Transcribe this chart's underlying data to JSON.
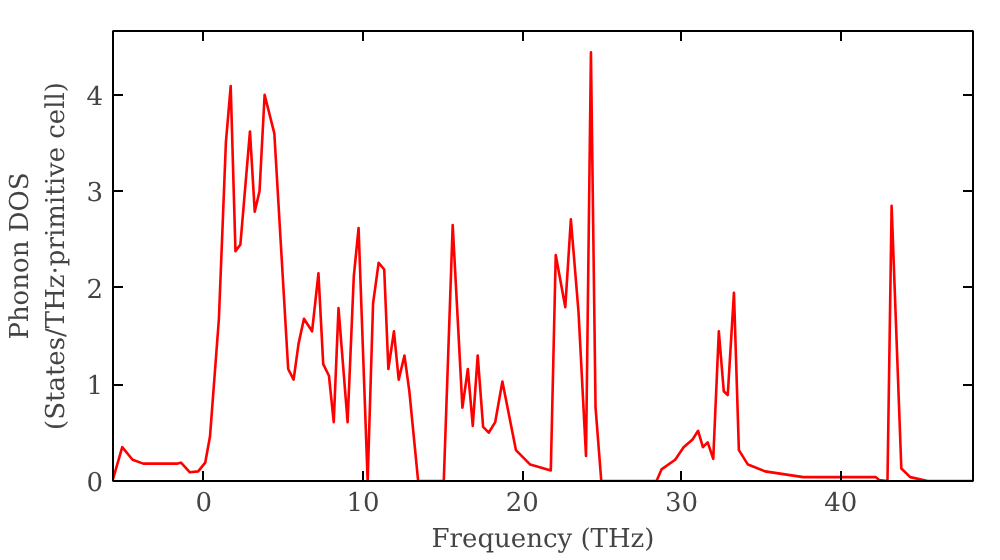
{
  "chart_data": {
    "type": "line",
    "xlabel": "Frequency (THz)",
    "ylabel": "Phonon DOS\n(States/THz·primitive cell)",
    "xlim": [
      -5.7,
      48.3
    ],
    "ylim": [
      0,
      4.66
    ],
    "xticks": [
      0,
      10,
      20,
      30,
      40
    ],
    "yticks": [
      0,
      1,
      2,
      3,
      4
    ],
    "grid": false,
    "line_style": "solid",
    "series": [
      {
        "color": "#ff0000",
        "x": [
          -5.7,
          -5.12,
          -4.47,
          -3.8,
          -1.65,
          -1.43,
          -0.87,
          -0.35,
          0.09,
          0.39,
          0.95,
          1.39,
          1.69,
          1.99,
          2.3,
          2.9,
          3.2,
          3.5,
          3.82,
          4.43,
          5.3,
          5.64,
          5.95,
          6.29,
          6.8,
          7.2,
          7.5,
          7.86,
          8.16,
          8.46,
          9.03,
          9.42,
          9.72,
          10.29,
          10.63,
          10.98,
          11.33,
          11.59,
          11.94,
          12.24,
          12.6,
          12.9,
          13.46,
          15.07,
          15.63,
          16.24,
          16.58,
          16.89,
          17.2,
          17.54,
          17.89,
          18.3,
          18.75,
          19.6,
          20.5,
          21.79,
          22.1,
          22.7,
          23.05,
          23.53,
          24.0,
          24.31,
          24.6,
          24.96,
          28.43,
          28.74,
          29.6,
          30.13,
          30.69,
          31.04,
          31.34,
          31.64,
          31.99,
          32.34,
          32.65,
          32.9,
          33.29,
          33.6,
          34.17,
          35.25,
          37.64,
          42.2,
          42.4,
          42.93,
          43.19,
          43.8,
          44.36,
          45.45,
          48.3
        ],
        "values": [
          0.02,
          0.35,
          0.22,
          0.18,
          0.18,
          0.19,
          0.09,
          0.1,
          0.19,
          0.46,
          1.68,
          3.51,
          4.09,
          2.38,
          2.45,
          3.62,
          2.79,
          3.0,
          4.0,
          3.6,
          1.16,
          1.05,
          1.42,
          1.68,
          1.55,
          2.15,
          1.21,
          1.09,
          0.61,
          1.79,
          0.61,
          2.12,
          2.62,
          0,
          1.84,
          2.26,
          2.19,
          1.16,
          1.55,
          1.05,
          1.3,
          0.94,
          0,
          0,
          2.65,
          0.76,
          1.16,
          0.57,
          1.3,
          0.56,
          0.5,
          0.61,
          1.03,
          0.32,
          0.17,
          0.11,
          2.34,
          1.8,
          2.71,
          1.75,
          0.26,
          4.44,
          0.76,
          0,
          0,
          0.12,
          0.22,
          0.35,
          0.43,
          0.52,
          0.35,
          0.4,
          0.23,
          1.55,
          0.93,
          0.89,
          1.95,
          0.32,
          0.17,
          0.1,
          0.04,
          0.04,
          0.01,
          0,
          2.85,
          0.13,
          0.04,
          0,
          0
        ]
      }
    ]
  }
}
